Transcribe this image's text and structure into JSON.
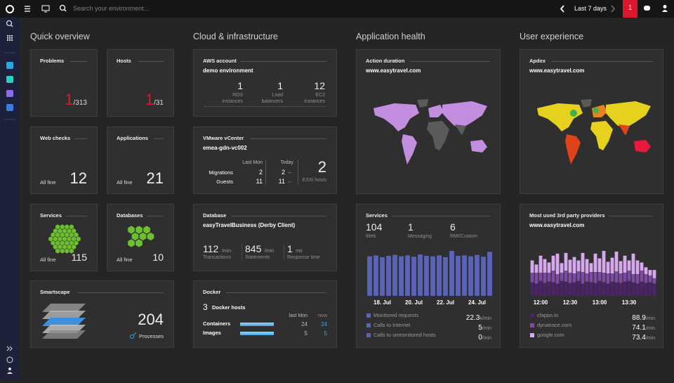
{
  "topbar": {
    "search_placeholder": "Search your environment...",
    "timeframe": "Last 7 days",
    "notifications": 1
  },
  "sections": [
    "Quick overview",
    "Cloud & infrastructure",
    "Application health",
    "User experience"
  ],
  "problems": {
    "title": "Problems",
    "count": 1,
    "total": "/313"
  },
  "hosts": {
    "title": "Hosts",
    "count": 1,
    "total": "/31"
  },
  "web_checks": {
    "title": "Web checks",
    "status": "All fine",
    "count": 12
  },
  "applications": {
    "title": "Applications",
    "status": "All fine",
    "count": 21
  },
  "services_tile": {
    "title": "Services",
    "status": "All fine",
    "count": 115
  },
  "databases": {
    "title": "Databases",
    "status": "All fine",
    "count": 10
  },
  "smartscape": {
    "title": "Smartscape",
    "count": 204,
    "label": "Processes"
  },
  "aws": {
    "title": "AWS account",
    "subtitle": "demo environment",
    "metrics": [
      {
        "value": 1,
        "label": "RDS instances"
      },
      {
        "value": 1,
        "label": "Load balancers"
      },
      {
        "value": 12,
        "label": "EC2 instances"
      }
    ]
  },
  "vmware": {
    "title": "VMware vCenter",
    "subtitle": "emea-gdn-vc002",
    "columns": [
      "Last Mon",
      "Today"
    ],
    "rows": [
      {
        "name": "Migrations",
        "last": 2,
        "today": 2,
        "trend": "–"
      },
      {
        "name": "Guests",
        "last": 11,
        "today": 11,
        "trend": "–"
      }
    ],
    "esxi": {
      "value": 2,
      "label": "ESXi hosts"
    }
  },
  "database": {
    "title": "Database",
    "subtitle": "easyTravelBusiness (Derby Client)",
    "metrics": [
      {
        "value": 112,
        "unit": "/min",
        "label": "Transactions"
      },
      {
        "value": 845,
        "unit": "/min",
        "label": "Statements"
      },
      {
        "value": 1,
        "unit": "ms",
        "label": "Response time"
      }
    ]
  },
  "docker": {
    "title": "Docker",
    "hosts": 3,
    "hosts_label": "Docker hosts",
    "columns": [
      "last Mon",
      "now"
    ],
    "rows": [
      {
        "name": "Containers",
        "last": 24,
        "now": 24
      },
      {
        "name": "Images",
        "last": 5,
        "now": 5
      }
    ]
  },
  "action_duration": {
    "title": "Action duration",
    "subtitle": "www.easytravel.com"
  },
  "apdex": {
    "title": "Apdex",
    "subtitle": "www.easytravel.com"
  },
  "services_health": {
    "title": "Services",
    "metrics": [
      {
        "value": 104,
        "label": "Web"
      },
      {
        "value": 1,
        "label": "Messaging"
      },
      {
        "value": 6,
        "label": "RMI/Custom"
      }
    ],
    "chart": {
      "type": "bar",
      "color": "#5b63b8",
      "categories": [
        null,
        null,
        "18. Jul",
        null,
        null,
        null,
        null,
        "20. Jul",
        null,
        null,
        null,
        null,
        "22. Jul",
        null,
        null,
        null,
        null,
        "24. Jul",
        null,
        null
      ],
      "values": [
        88,
        90,
        86,
        89,
        91,
        88,
        90,
        87,
        92,
        89,
        88,
        90,
        86,
        100,
        89,
        90,
        88,
        91,
        87,
        98
      ]
    },
    "stats": [
      {
        "label": "Monitored requests",
        "value": 22.3,
        "unit": "k/min"
      },
      {
        "label": "Calls to Internet",
        "value": 5,
        "unit": "/min"
      },
      {
        "label": "Calls to unmonitored hosts",
        "value": 0,
        "unit": "/min"
      }
    ]
  },
  "third_party": {
    "title": "Most used 3rd party providers",
    "subtitle": "www.easytravel.com",
    "chart": {
      "type": "stacked-bar",
      "categories": [
        null,
        null,
        "12:00",
        null,
        null,
        null,
        null,
        null,
        null,
        "12:30",
        null,
        null,
        null,
        null,
        null,
        null,
        "13:00",
        null,
        null,
        null,
        null,
        null,
        null,
        "13:30",
        null,
        null,
        null,
        null,
        null,
        null
      ],
      "series": [
        {
          "name": "cfapps.io",
          "color": "#4a2466",
          "rate": 88.9,
          "unit": "/min",
          "values": [
            20,
            18,
            22,
            19,
            21,
            20,
            18,
            22,
            21,
            19,
            20,
            22,
            18,
            21,
            20,
            19,
            22,
            20,
            18,
            21,
            20,
            19,
            21,
            22,
            20,
            18,
            21,
            19,
            20,
            18
          ]
        },
        {
          "name": "dynatrace.com",
          "color": "#7d4aa6",
          "rate": 74.1,
          "unit": "/min",
          "values": [
            14,
            16,
            12,
            15,
            13,
            17,
            14,
            12,
            16,
            15,
            13,
            14,
            17,
            12,
            15,
            16,
            13,
            14,
            15,
            12,
            16,
            14,
            13,
            15,
            12,
            14,
            16,
            13,
            10,
            8
          ]
        },
        {
          "name": "google.com",
          "color": "#d8a8ee",
          "rate": 73.4,
          "unit": "/min",
          "values": [
            18,
            12,
            25,
            20,
            15,
            22,
            30,
            14,
            26,
            19,
            24,
            16,
            28,
            21,
            13,
            27,
            20,
            32,
            17,
            23,
            29,
            18,
            25,
            15,
            30,
            20,
            12,
            10,
            8,
            12
          ]
        }
      ]
    }
  }
}
